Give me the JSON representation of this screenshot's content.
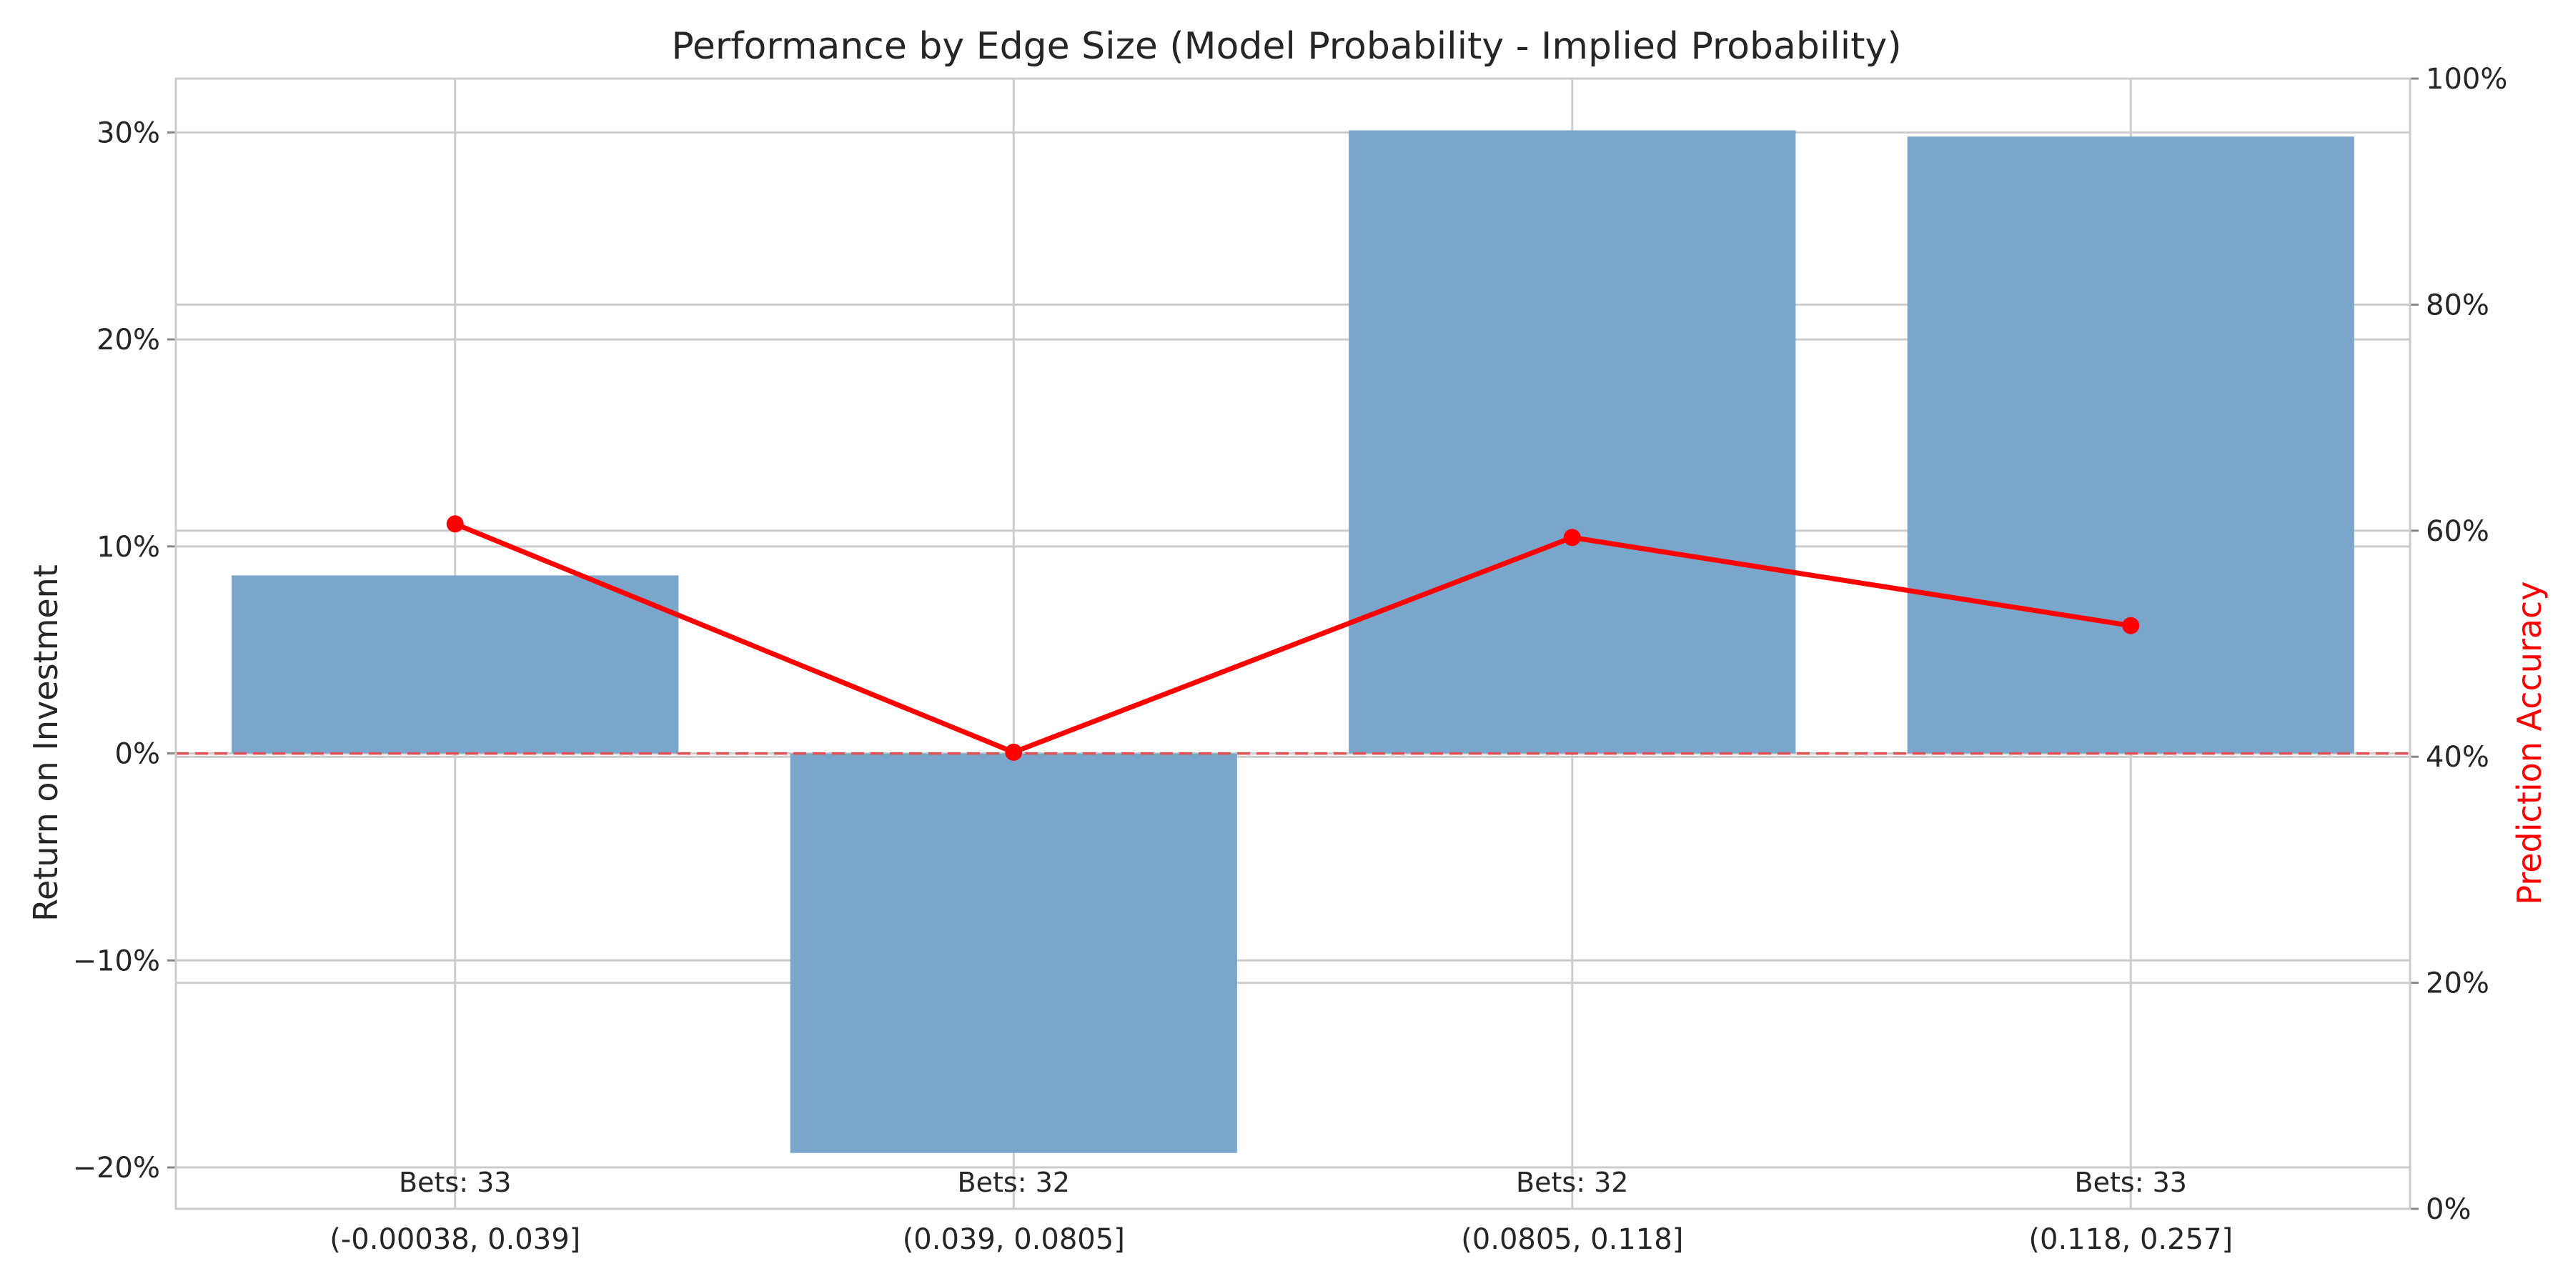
{
  "chart_data": {
    "type": "bar",
    "title": "Performance by Edge Size (Model Probability - Implied Probability)",
    "xlabel": "",
    "ylabel": "Return on Investment",
    "y2label": "Prediction Accuracy",
    "categories": [
      "(-0.00038, 0.039]",
      "(0.039, 0.0805]",
      "(0.0805, 0.118]",
      "(0.118, 0.257]"
    ],
    "series": [
      {
        "axis": "left",
        "kind": "bar",
        "values": [
          8.6,
          -19.3,
          30.1,
          29.8
        ],
        "color": "#7ba6cb"
      },
      {
        "axis": "right",
        "kind": "line",
        "values": [
          60.6,
          40.4,
          59.4,
          51.6
        ],
        "color": "#ff0000"
      }
    ],
    "bar_annotations": [
      "Bets: 33",
      "Bets: 32",
      "Bets: 32",
      "Bets: 33"
    ],
    "ylim": [
      -22,
      32.6
    ],
    "yticks": [
      -20,
      -10,
      0,
      10,
      20,
      30
    ],
    "ytick_labels": [
      "−20%",
      "−10%",
      "0%",
      "10%",
      "20%",
      "30%"
    ],
    "y2lim": [
      0,
      100
    ],
    "y2ticks": [
      0,
      20,
      40,
      60,
      80,
      100
    ],
    "y2tick_labels": [
      "0%",
      "20%",
      "40%",
      "60%",
      "80%",
      "100%"
    ],
    "reference_line": {
      "y": 0,
      "style": "dashed",
      "color": "#e05050"
    },
    "grid": true
  }
}
